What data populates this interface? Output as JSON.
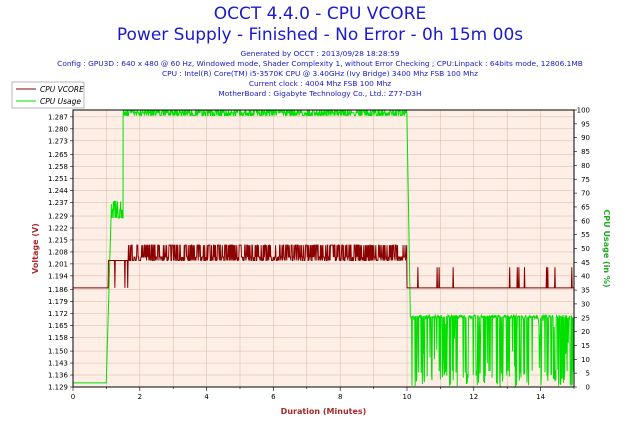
{
  "header": {
    "title_line1": "OCCT 4.4.0 - CPU VCORE",
    "title_line2": "Power Supply - Finished - No Error - 0h 15m 00s",
    "info_lines": [
      "Generated by OCCT : 2013/09/28 18:28:59",
      "Config : GPU3D : 640 x 480 @ 60 Hz, Windowed mode, Shader Complexity 1, without Error Checking ; CPU:Linpack : 64bits mode, 12806.1MB",
      "CPU : Intel(R) Core(TM) i5-3570K CPU @ 3.40GHz (Ivy Bridge) 3400 Mhz FSB 100 Mhz",
      "Current clock : 4004 Mhz FSB 100 Mhz",
      "MotherBoard : Gigabyte Technology Co., Ltd.: Z77-D3H"
    ]
  },
  "colors": {
    "vcore": "#8b0000",
    "usage": "#00e000",
    "title": "#1a1acc",
    "plot_bg": "#fdeee6",
    "grid": "#d6b8a8"
  },
  "chart_data": {
    "type": "line",
    "xlabel": "Duration (Minutes)",
    "ylabel_left": "Voltage (V)",
    "ylabel_right": "CPU Usage (in %)",
    "xlim": [
      0,
      15
    ],
    "xticks": [
      0,
      2,
      4,
      6,
      8,
      10,
      12,
      14
    ],
    "ylim_left": [
      1.129,
      1.291
    ],
    "yticks_left": [
      1.129,
      1.136,
      1.143,
      1.15,
      1.158,
      1.165,
      1.172,
      1.179,
      1.186,
      1.194,
      1.201,
      1.208,
      1.215,
      1.222,
      1.229,
      1.237,
      1.244,
      1.251,
      1.258,
      1.265,
      1.273,
      1.28,
      1.287
    ],
    "ytick_labels_left": [
      "1.129",
      "1.136",
      "1.143",
      "1.150",
      "1.158",
      "1.165",
      "1.172",
      "1.179",
      "1.186",
      "1.194",
      "1.201",
      "1.208",
      "1.215",
      "1.222",
      "1.229",
      "1.237",
      "1.244",
      "1.251",
      "1.258",
      "1.265",
      "1.273",
      "1.280",
      "1.287"
    ],
    "ylim_right": [
      0,
      100
    ],
    "yticks_right": [
      0,
      5,
      10,
      15,
      20,
      25,
      30,
      35,
      40,
      45,
      50,
      55,
      60,
      65,
      70,
      75,
      80,
      85,
      90,
      95,
      100
    ],
    "legend": {
      "placement": "top-left",
      "entries": [
        "CPU VCORE",
        "CPU Usage"
      ]
    },
    "grid": true,
    "series": [
      {
        "name": "CPU VCORE",
        "axis": "left",
        "segments": [
          {
            "x_start": 0.0,
            "x_end": 1.05,
            "base": 1.187
          },
          {
            "x_start": 1.05,
            "x_end": 1.65,
            "base": 1.203,
            "low": 1.187,
            "high": 1.203,
            "noise": "dips"
          },
          {
            "x_start": 1.65,
            "x_end": 10.0,
            "base": 1.205,
            "low": 1.203,
            "high": 1.212,
            "noise": "oscillating"
          },
          {
            "x_start": 10.0,
            "x_end": 10.05,
            "base": 1.187
          },
          {
            "x_start": 10.05,
            "x_end": 15.0,
            "base": 1.187,
            "high": 1.199,
            "noise": "spikes"
          }
        ]
      },
      {
        "name": "CPU Usage",
        "axis": "right",
        "segments": [
          {
            "x_start": 0.0,
            "x_end": 1.0,
            "base": 1.5
          },
          {
            "x_start": 1.0,
            "x_end": 1.15,
            "ramp_to": 66
          },
          {
            "x_start": 1.15,
            "x_end": 1.5,
            "base": 64,
            "low": 61,
            "high": 67,
            "noise": "oscillating"
          },
          {
            "x_start": 1.5,
            "x_end": 10.0,
            "base": 99,
            "low": 98,
            "high": 100,
            "noise": "oscillating"
          },
          {
            "x_start": 10.0,
            "x_end": 10.1,
            "ramp_to": 26
          },
          {
            "x_start": 10.1,
            "x_end": 15.0,
            "base": 25,
            "low": 0,
            "high": 26,
            "noise": "drops"
          }
        ]
      }
    ]
  }
}
